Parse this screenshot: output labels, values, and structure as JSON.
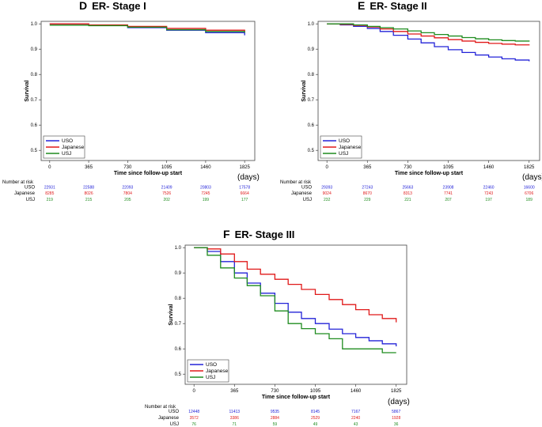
{
  "chart_data": [
    {
      "type": "line",
      "panel_letter": "D",
      "title": "ER- Stage I",
      "xlabel": "Time since follow-up start",
      "xunit": "(days)",
      "ylabel": "Survival",
      "xticks": [
        0,
        365,
        730,
        1095,
        1460,
        1825
      ],
      "yticks": [
        0.5,
        0.6,
        0.7,
        0.8,
        0.9,
        1.0
      ],
      "xlim": [
        -80,
        1920
      ],
      "ylim": [
        0.46,
        1.01
      ],
      "series": [
        {
          "name": "USO",
          "color": "#2323d8",
          "x": [
            0,
            365,
            730,
            1095,
            1460,
            1825
          ],
          "y": [
            1.0,
            0.995,
            0.985,
            0.975,
            0.965,
            0.955
          ]
        },
        {
          "name": "Japanese",
          "color": "#e01919",
          "x": [
            0,
            365,
            730,
            1095,
            1460,
            1825
          ],
          "y": [
            1.0,
            0.996,
            0.99,
            0.982,
            0.975,
            0.968
          ]
        },
        {
          "name": "USJ",
          "color": "#1f8c1f",
          "x": [
            0,
            365,
            730,
            1095,
            1460,
            1825
          ],
          "y": [
            0.995,
            0.993,
            0.987,
            0.977,
            0.97,
            0.965
          ]
        }
      ],
      "legend": [
        "USO",
        "Japanese",
        "USJ"
      ],
      "risk_header": "Number at risk",
      "risk_table": [
        {
          "group": "USO",
          "color": "#2323d8",
          "values": [
            "22931",
            "22588",
            "22093",
            "21409",
            "20803",
            "17578"
          ]
        },
        {
          "group": "Japanese",
          "color": "#e01919",
          "values": [
            "8285",
            "8026",
            "7804",
            "7526",
            "7245",
            "6664"
          ]
        },
        {
          "group": "USJ",
          "color": "#1f8c1f",
          "values": [
            "219",
            "215",
            "205",
            "202",
            "199",
            "177"
          ]
        }
      ]
    },
    {
      "type": "line",
      "panel_letter": "E",
      "title": "ER- Stage II",
      "xlabel": "Time since follow-up start",
      "xunit": "(days)",
      "ylabel": "Survival",
      "xticks": [
        0,
        365,
        730,
        1095,
        1460,
        1825
      ],
      "yticks": [
        0.5,
        0.6,
        0.7,
        0.8,
        0.9,
        1.0
      ],
      "xlim": [
        -80,
        1920
      ],
      "ylim": [
        0.46,
        1.01
      ],
      "series": [
        {
          "name": "USO",
          "color": "#2323d8",
          "x": [
            0,
            120,
            240,
            365,
            480,
            600,
            730,
            850,
            970,
            1095,
            1220,
            1340,
            1460,
            1580,
            1700,
            1825
          ],
          "y": [
            1.0,
            0.996,
            0.99,
            0.982,
            0.97,
            0.955,
            0.94,
            0.925,
            0.91,
            0.898,
            0.887,
            0.877,
            0.869,
            0.862,
            0.857,
            0.852
          ]
        },
        {
          "name": "Japanese",
          "color": "#e01919",
          "x": [
            0,
            120,
            240,
            365,
            480,
            600,
            730,
            850,
            970,
            1095,
            1220,
            1340,
            1460,
            1580,
            1700,
            1825
          ],
          "y": [
            1.0,
            0.998,
            0.994,
            0.988,
            0.98,
            0.97,
            0.96,
            0.952,
            0.945,
            0.938,
            0.932,
            0.927,
            0.923,
            0.92,
            0.917,
            0.915
          ]
        },
        {
          "name": "USJ",
          "color": "#1f8c1f",
          "x": [
            0,
            120,
            240,
            365,
            480,
            600,
            730,
            850,
            970,
            1095,
            1220,
            1340,
            1460,
            1580,
            1700,
            1825
          ],
          "y": [
            1.0,
            1.0,
            0.996,
            0.99,
            0.985,
            0.98,
            0.972,
            0.965,
            0.958,
            0.952,
            0.946,
            0.941,
            0.937,
            0.934,
            0.932,
            0.93
          ]
        }
      ],
      "legend": [
        "USO",
        "Japanese",
        "USJ"
      ],
      "risk_header": "Number at risk",
      "risk_table": [
        {
          "group": "USO",
          "color": "#2323d8",
          "values": [
            "29393",
            "27243",
            "25663",
            "23908",
            "22460",
            "16600"
          ]
        },
        {
          "group": "Japanese",
          "color": "#e01919",
          "values": [
            "9024",
            "8670",
            "8313",
            "7741",
            "7243",
            "6706"
          ]
        },
        {
          "group": "USJ",
          "color": "#1f8c1f",
          "values": [
            "232",
            "229",
            "221",
            "207",
            "197",
            "189"
          ]
        }
      ]
    },
    {
      "type": "line",
      "panel_letter": "F",
      "title": "ER- Stage III",
      "xlabel": "Time since follow-up start",
      "xunit": "(days)",
      "ylabel": "Survival",
      "xticks": [
        0,
        365,
        730,
        1095,
        1460,
        1825
      ],
      "yticks": [
        0.5,
        0.6,
        0.7,
        0.8,
        0.9,
        1.0
      ],
      "xlim": [
        -80,
        1920
      ],
      "ylim": [
        0.46,
        1.01
      ],
      "series": [
        {
          "name": "USO",
          "color": "#2323d8",
          "x": [
            0,
            120,
            240,
            365,
            480,
            600,
            730,
            850,
            970,
            1095,
            1220,
            1340,
            1460,
            1580,
            1700,
            1825
          ],
          "y": [
            1.0,
            0.985,
            0.945,
            0.9,
            0.86,
            0.82,
            0.78,
            0.745,
            0.72,
            0.7,
            0.678,
            0.66,
            0.645,
            0.632,
            0.62,
            0.61
          ]
        },
        {
          "name": "Japanese",
          "color": "#e01919",
          "x": [
            0,
            120,
            240,
            365,
            480,
            600,
            730,
            850,
            970,
            1095,
            1220,
            1340,
            1460,
            1580,
            1700,
            1825
          ],
          "y": [
            1.0,
            0.995,
            0.975,
            0.945,
            0.915,
            0.895,
            0.875,
            0.855,
            0.835,
            0.815,
            0.795,
            0.775,
            0.755,
            0.735,
            0.72,
            0.705
          ]
        },
        {
          "name": "USJ",
          "color": "#1f8c1f",
          "x": [
            0,
            120,
            240,
            365,
            480,
            600,
            730,
            850,
            970,
            1095,
            1220,
            1340,
            1460,
            1580,
            1700,
            1825
          ],
          "y": [
            1.0,
            0.97,
            0.92,
            0.88,
            0.85,
            0.81,
            0.75,
            0.7,
            0.68,
            0.66,
            0.64,
            0.6,
            0.6,
            0.6,
            0.585,
            0.585
          ]
        }
      ],
      "legend": [
        "USO",
        "Japanese",
        "USJ"
      ],
      "risk_header": "Number at risk",
      "risk_table": [
        {
          "group": "USO",
          "color": "#2323d8",
          "values": [
            "12448",
            "11413",
            "9535",
            "8145",
            "7167",
            "5867"
          ]
        },
        {
          "group": "Japanese",
          "color": "#e01919",
          "values": [
            "3572",
            "3386",
            "2884",
            "2529",
            "2240",
            "1928"
          ]
        },
        {
          "group": "USJ",
          "color": "#1f8c1f",
          "values": [
            "76",
            "71",
            "59",
            "49",
            "43",
            "36"
          ]
        }
      ]
    }
  ]
}
